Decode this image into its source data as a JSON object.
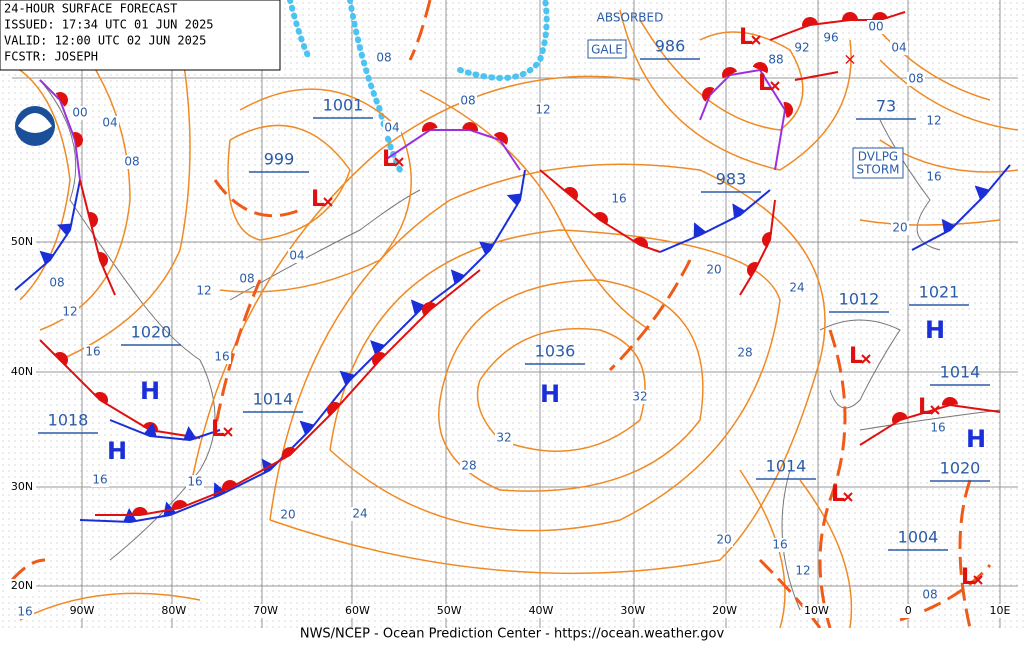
{
  "header": {
    "lines": [
      "24-HOUR SURFACE FORECAST",
      "ISSUED: 17:34 UTC 01 JUN 2025",
      "VALID:  12:00 UTC 02 JUN 2025",
      "FCSTR:  JOSEPH"
    ]
  },
  "footer": "NWS/NCEP - Ocean Prediction Center - https://ocean.weather.gov",
  "lat_labels": [
    "50N",
    "40N",
    "30N",
    "20N"
  ],
  "lon_labels": [
    "90W",
    "80W",
    "70W",
    "60W",
    "50W",
    "40W",
    "30W",
    "20W",
    "10W",
    "0",
    "10E"
  ],
  "notes": {
    "absorbed": "ABSORBED",
    "gale": "GALE",
    "storm": [
      "DVLPG",
      "STORM"
    ]
  },
  "centers": [
    "1001",
    "999",
    "986",
    "983",
    "73",
    "1012",
    "1021",
    "1036",
    "1014",
    "1014",
    "1018",
    "1020",
    "1020",
    "1014",
    "1004"
  ],
  "highs": [
    "H",
    "H",
    "H",
    "H",
    "H"
  ],
  "lows": [
    "L",
    "L",
    "L",
    "L",
    "L",
    "L",
    "L",
    "L",
    "L"
  ],
  "isobar_labels": [
    "96",
    "00",
    "04",
    "08",
    "08",
    "12",
    "16",
    "12",
    "08",
    "04",
    "16",
    "08",
    "04",
    "08",
    "12",
    "16",
    "20",
    "24",
    "28",
    "32",
    "32",
    "28",
    "24",
    "20",
    "16",
    "16",
    "20",
    "16",
    "12",
    "16",
    "08",
    "16",
    "20",
    "16",
    "12",
    "08",
    "04",
    "00",
    "96",
    "92",
    "88"
  ]
}
